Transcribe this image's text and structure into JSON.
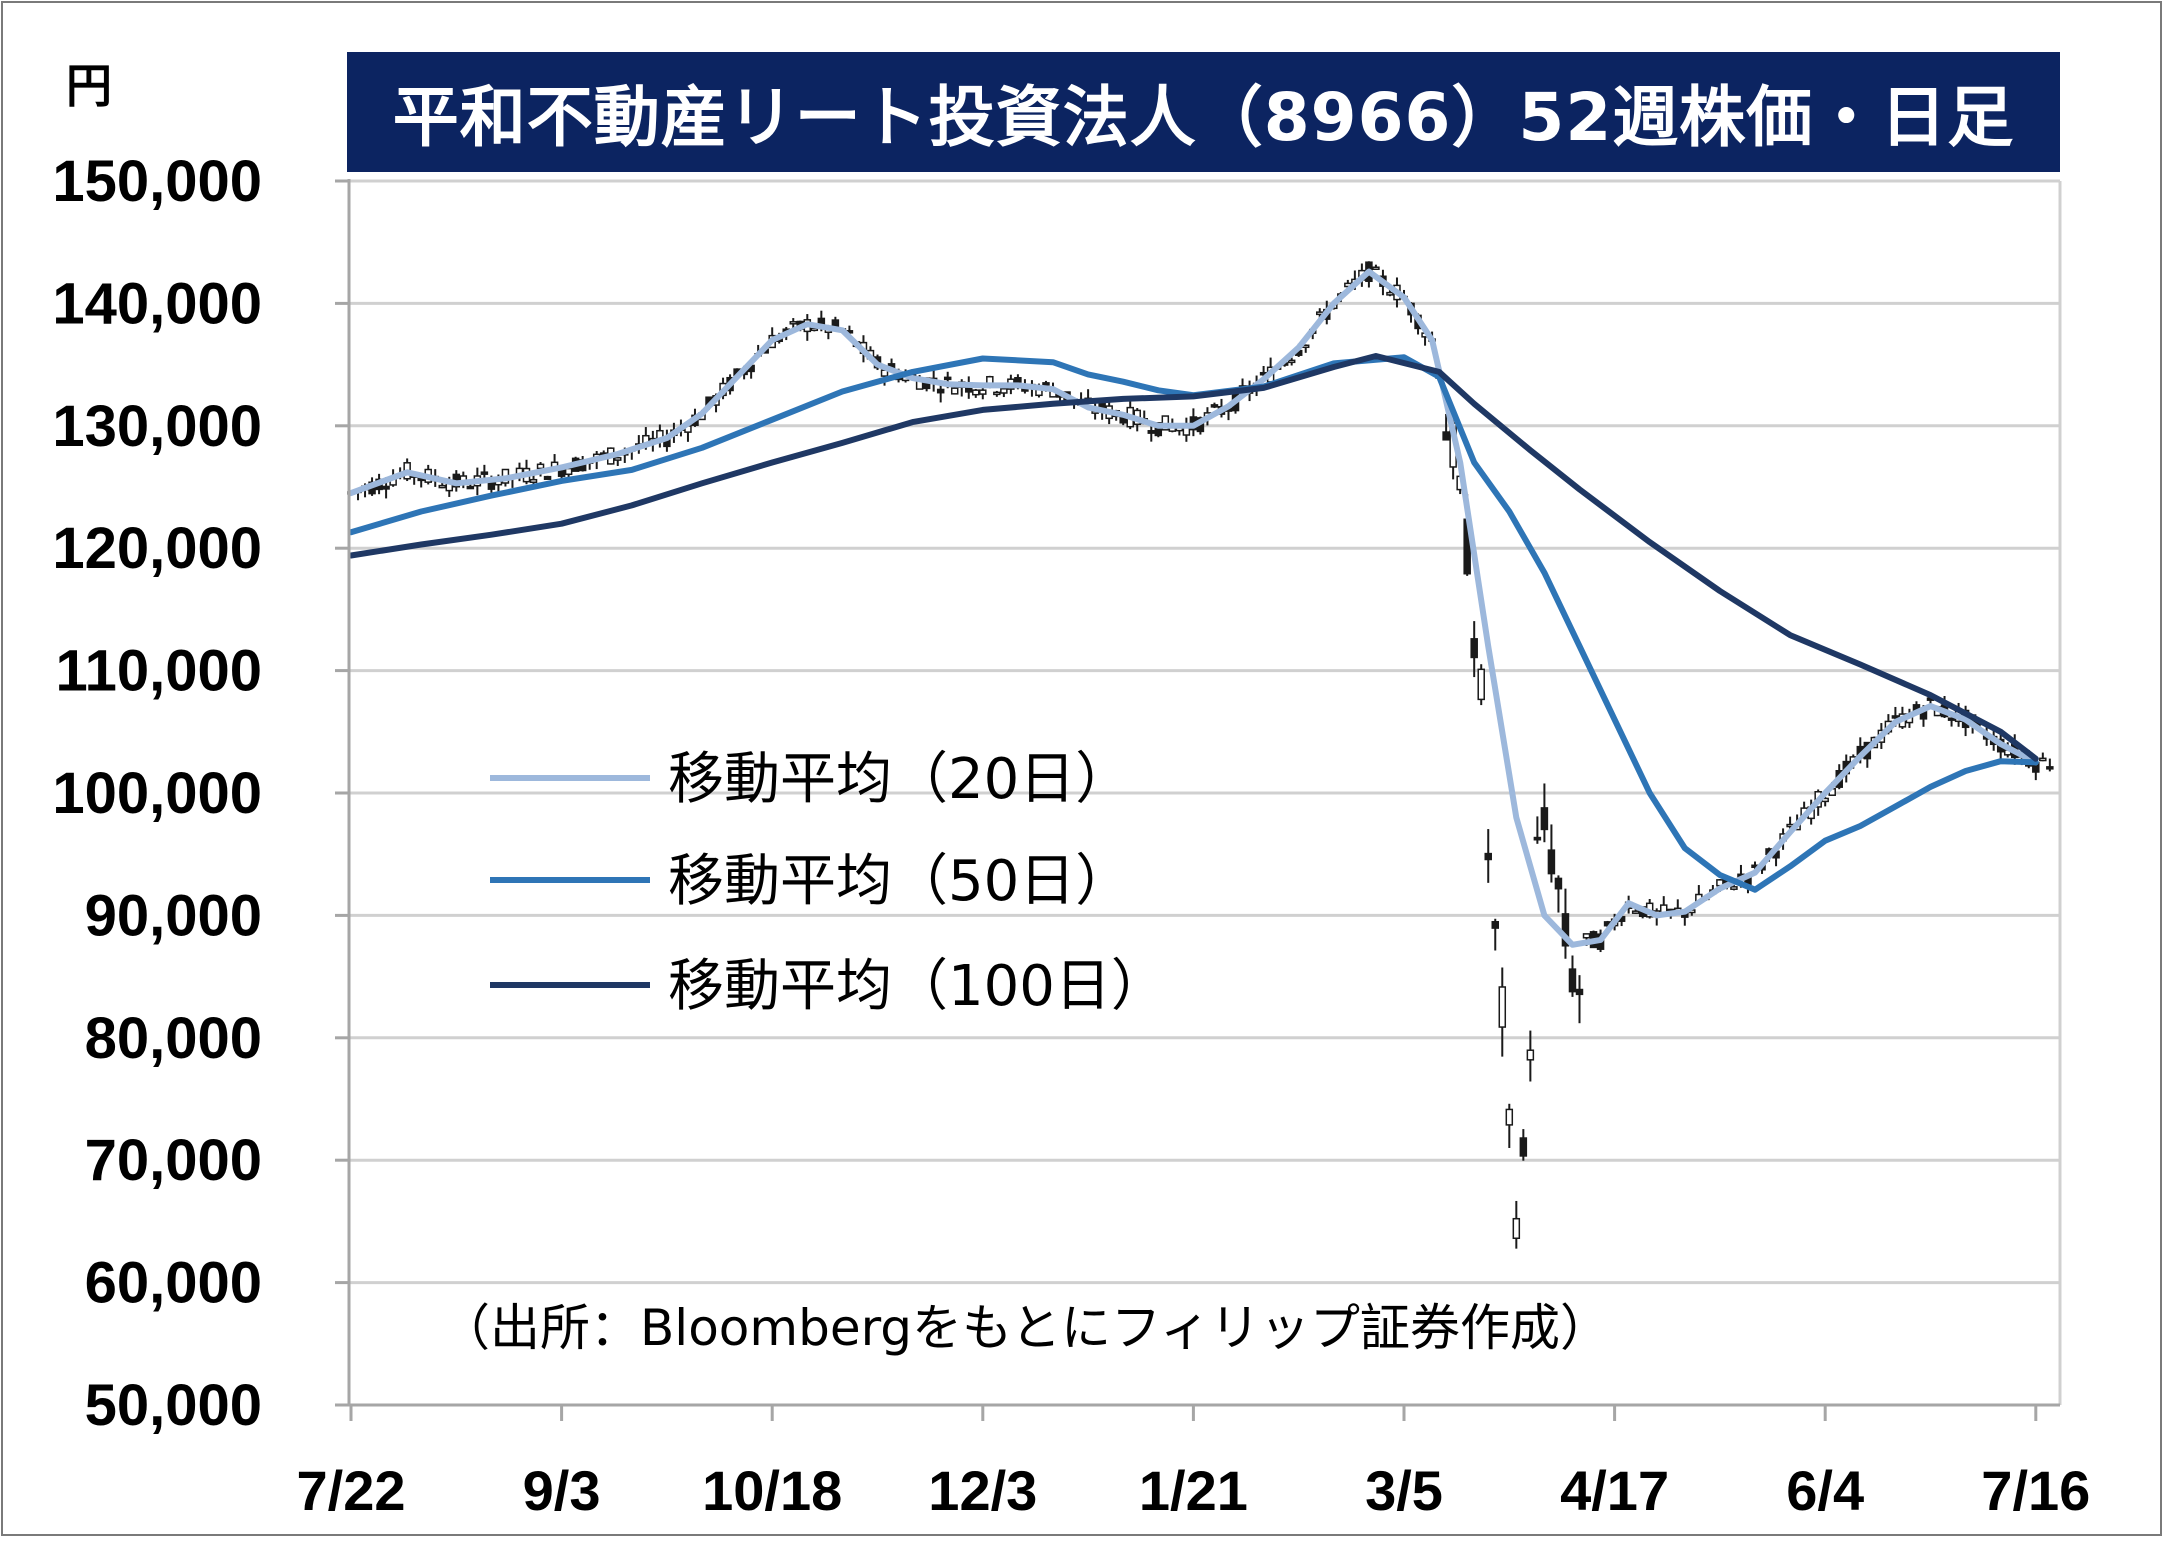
{
  "unit_label": "円",
  "chart_data": {
    "type": "candlestick-line",
    "title": "平和不動産リート投資法人（8966）52週株価・日足",
    "ylabel": "円",
    "ylim": [
      50000,
      150000
    ],
    "yticks": [
      "150,000",
      "140,000",
      "130,000",
      "120,000",
      "110,000",
      "100,000",
      "90,000",
      "80,000",
      "70,000",
      "60,000",
      "50,000"
    ],
    "ytick_values": [
      150000,
      140000,
      130000,
      120000,
      110000,
      100000,
      90000,
      80000,
      70000,
      60000,
      50000
    ],
    "grid": true,
    "xtick_labels": [
      "7/22",
      "9/3",
      "10/18",
      "12/3",
      "1/21",
      "3/5",
      "4/17",
      "6/4",
      "7/16"
    ],
    "xtick_days": [
      0,
      30,
      60,
      90,
      120,
      150,
      180,
      210,
      240
    ],
    "x_range_days": [
      0,
      242
    ],
    "legend_placement": "middle-left",
    "source_note": "（出所：Bloombergをもとにフィリップ証券作成）",
    "candle_color": "#1a1a1a",
    "series": [
      {
        "name": "移動平均（20日）",
        "color": "#9db8dc",
        "points": [
          [
            0,
            124500
          ],
          [
            8,
            126200
          ],
          [
            15,
            125300
          ],
          [
            22,
            125700
          ],
          [
            30,
            126600
          ],
          [
            38,
            127700
          ],
          [
            45,
            129000
          ],
          [
            50,
            131000
          ],
          [
            55,
            134000
          ],
          [
            60,
            137000
          ],
          [
            65,
            138300
          ],
          [
            70,
            137800
          ],
          [
            75,
            135000
          ],
          [
            80,
            133900
          ],
          [
            85,
            133400
          ],
          [
            90,
            133300
          ],
          [
            95,
            133300
          ],
          [
            100,
            133000
          ],
          [
            105,
            131500
          ],
          [
            110,
            130900
          ],
          [
            115,
            130000
          ],
          [
            120,
            130000
          ],
          [
            125,
            131600
          ],
          [
            130,
            133800
          ],
          [
            135,
            136400
          ],
          [
            140,
            140000
          ],
          [
            145,
            142600
          ],
          [
            150,
            140500
          ],
          [
            154,
            137000
          ],
          [
            158,
            127000
          ],
          [
            162,
            112000
          ],
          [
            166,
            98000
          ],
          [
            170,
            90000
          ],
          [
            174,
            87600
          ],
          [
            178,
            88000
          ],
          [
            182,
            91000
          ],
          [
            186,
            90000
          ],
          [
            190,
            90300
          ],
          [
            195,
            92200
          ],
          [
            200,
            93500
          ],
          [
            205,
            96800
          ],
          [
            210,
            100000
          ],
          [
            215,
            103000
          ],
          [
            220,
            105800
          ],
          [
            225,
            107100
          ],
          [
            230,
            106000
          ],
          [
            235,
            104000
          ],
          [
            240,
            102500
          ]
        ]
      },
      {
        "name": "移動平均（50日）",
        "color": "#2e75b6",
        "points": [
          [
            0,
            121300
          ],
          [
            10,
            123000
          ],
          [
            20,
            124300
          ],
          [
            30,
            125500
          ],
          [
            40,
            126400
          ],
          [
            50,
            128200
          ],
          [
            60,
            130500
          ],
          [
            70,
            132800
          ],
          [
            80,
            134400
          ],
          [
            90,
            135500
          ],
          [
            100,
            135200
          ],
          [
            105,
            134200
          ],
          [
            110,
            133600
          ],
          [
            115,
            132900
          ],
          [
            120,
            132500
          ],
          [
            130,
            133200
          ],
          [
            140,
            135100
          ],
          [
            150,
            135600
          ],
          [
            155,
            134000
          ],
          [
            160,
            127000
          ],
          [
            165,
            123000
          ],
          [
            170,
            118000
          ],
          [
            175,
            112000
          ],
          [
            180,
            106000
          ],
          [
            185,
            100000
          ],
          [
            190,
            95500
          ],
          [
            195,
            93300
          ],
          [
            200,
            92100
          ],
          [
            205,
            94000
          ],
          [
            210,
            96100
          ],
          [
            215,
            97300
          ],
          [
            220,
            98900
          ],
          [
            225,
            100500
          ],
          [
            230,
            101800
          ],
          [
            235,
            102600
          ],
          [
            240,
            102500
          ]
        ]
      },
      {
        "name": "移動平均（100日）",
        "color": "#1f3864",
        "points": [
          [
            0,
            119400
          ],
          [
            10,
            120300
          ],
          [
            20,
            121100
          ],
          [
            30,
            122000
          ],
          [
            40,
            123500
          ],
          [
            50,
            125300
          ],
          [
            60,
            127000
          ],
          [
            70,
            128600
          ],
          [
            80,
            130300
          ],
          [
            90,
            131300
          ],
          [
            100,
            131800
          ],
          [
            110,
            132200
          ],
          [
            120,
            132400
          ],
          [
            130,
            133100
          ],
          [
            140,
            134800
          ],
          [
            146,
            135700
          ],
          [
            155,
            134400
          ],
          [
            160,
            131800
          ],
          [
            168,
            128000
          ],
          [
            175,
            124800
          ],
          [
            185,
            120500
          ],
          [
            195,
            116500
          ],
          [
            205,
            112900
          ],
          [
            215,
            110500
          ],
          [
            225,
            108000
          ],
          [
            235,
            105000
          ],
          [
            240,
            102800
          ]
        ]
      }
    ]
  }
}
